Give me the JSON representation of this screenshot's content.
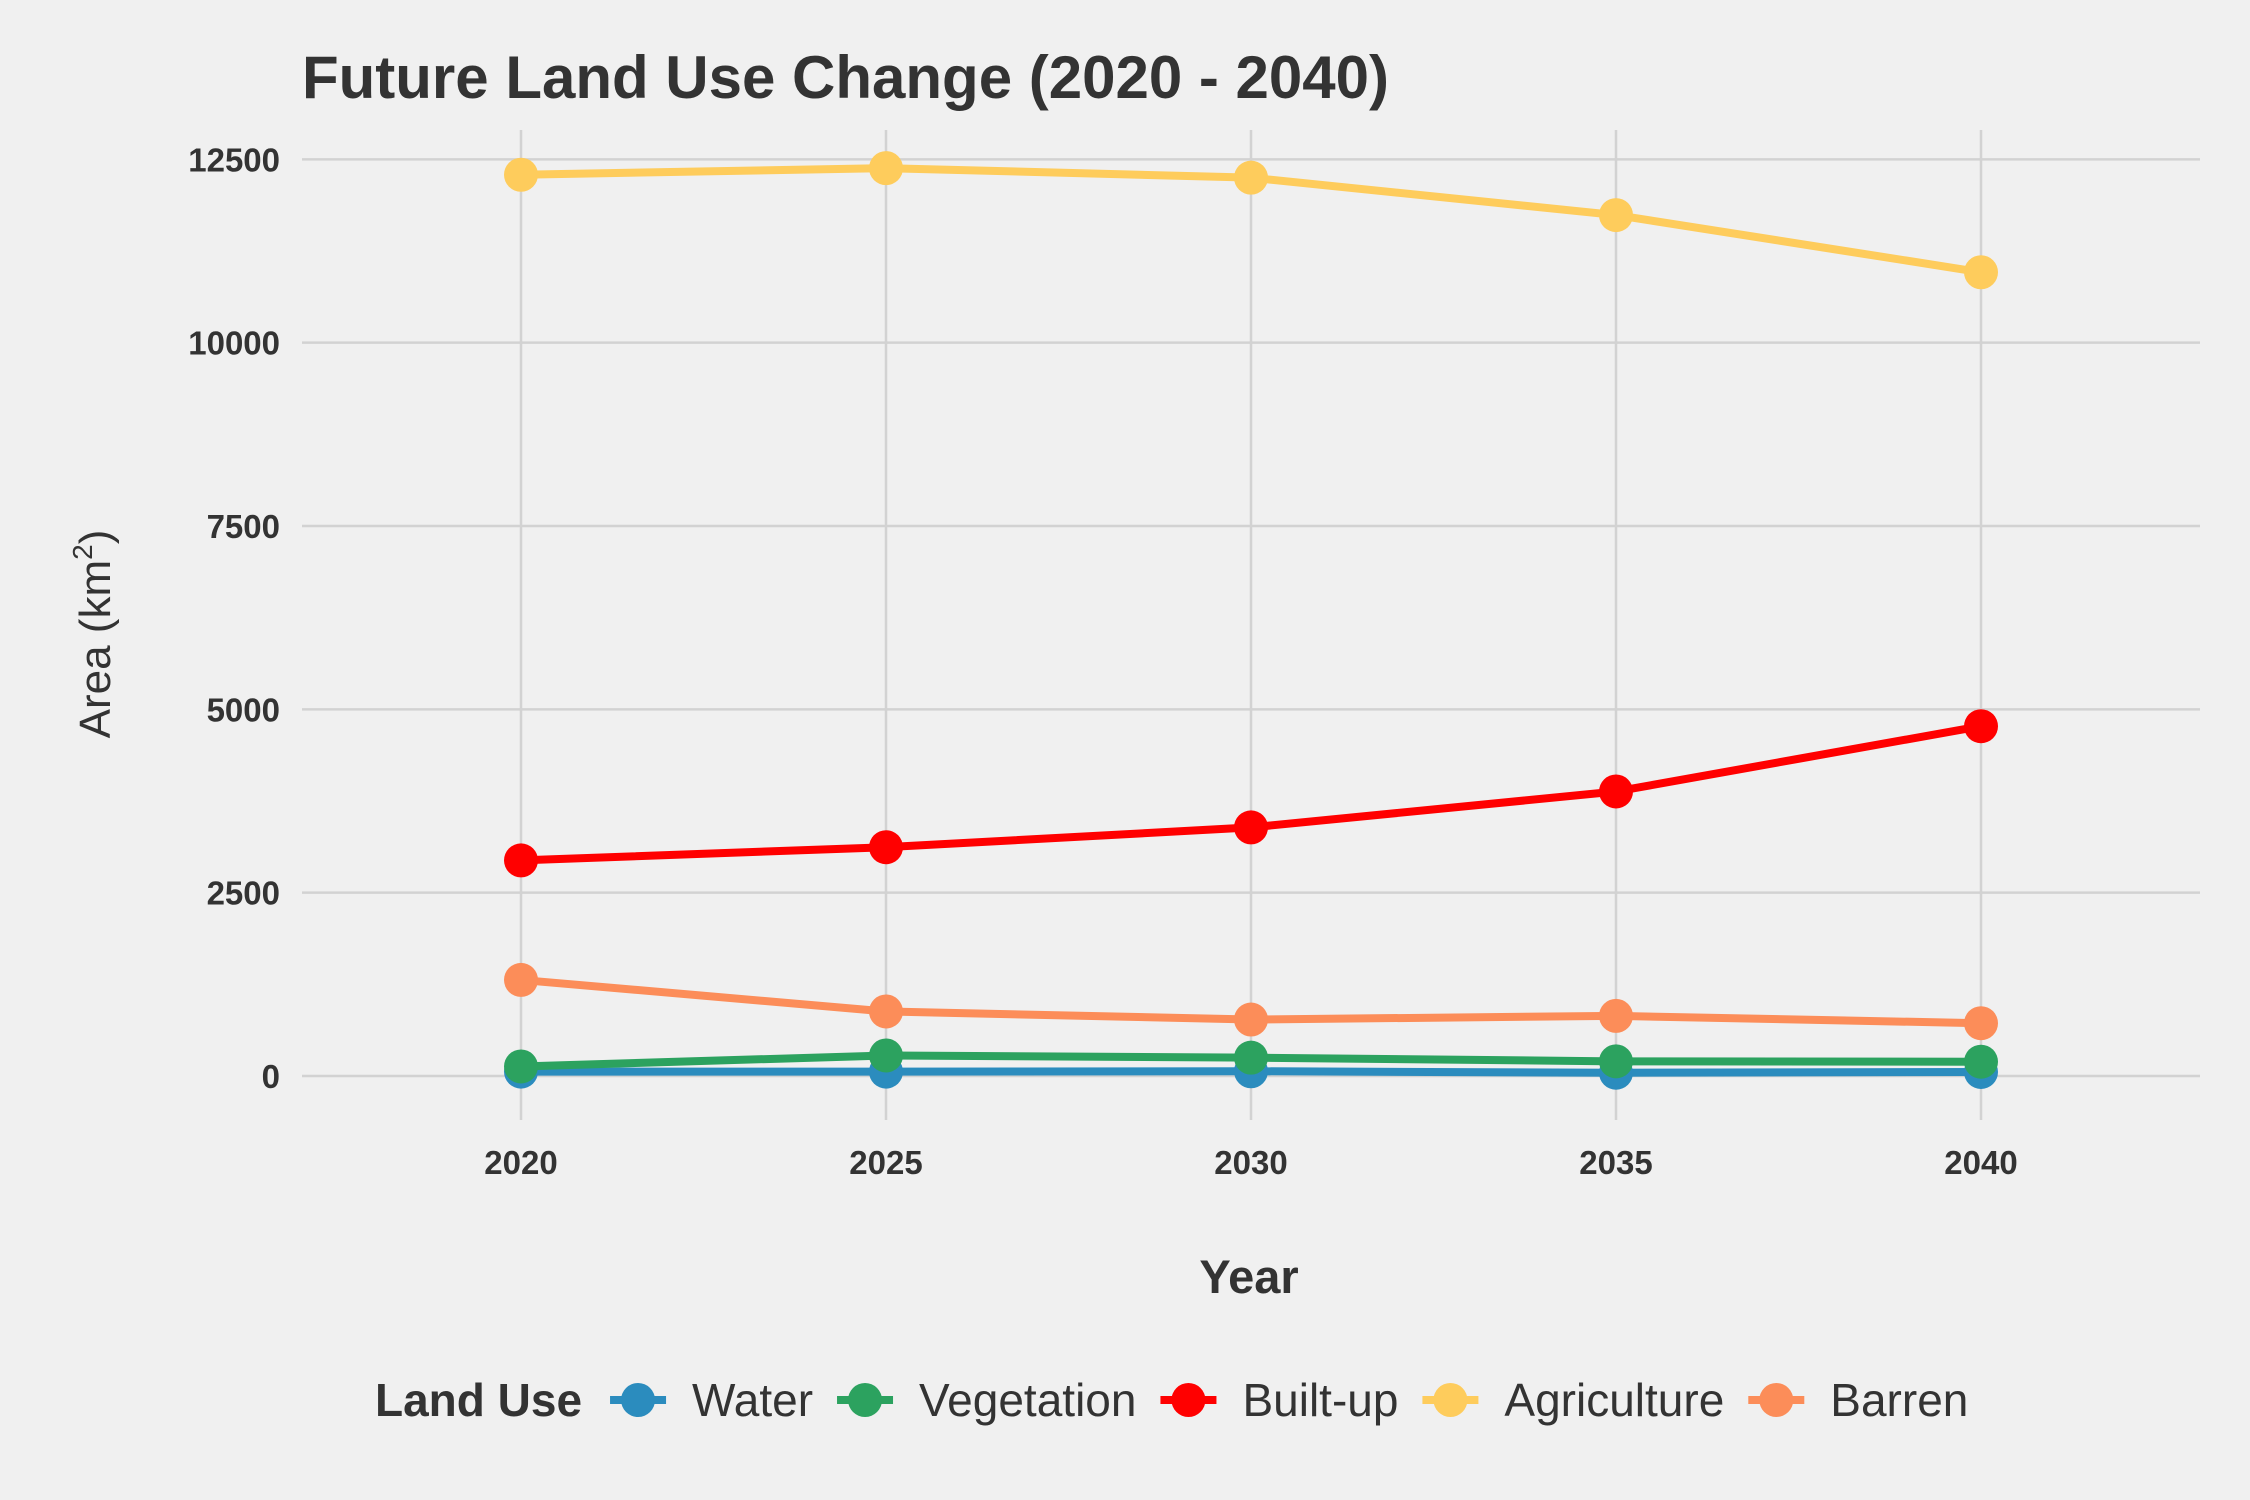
{
  "chart_data": {
    "type": "line",
    "title": "Future Land Use Change (2020 - 2040)",
    "xlabel": "Year",
    "ylabel": {
      "text": "Area (km",
      "sup": "2",
      "close": ")"
    },
    "x": [
      2020,
      2025,
      2030,
      2035,
      2040
    ],
    "x_ticks": [
      "2020",
      "2025",
      "2030",
      "2035",
      "2040"
    ],
    "xlim": [
      2017,
      2043
    ],
    "ylim": [
      -600,
      12900
    ],
    "y_ticks": [
      "0",
      "2500",
      "5000",
      "7500",
      "10000",
      "12500"
    ],
    "y_tick_values": [
      0,
      2500,
      5000,
      7500,
      10000,
      12500
    ],
    "grid": true,
    "legend": {
      "title": "Land Use",
      "position": "bottom"
    },
    "series": [
      {
        "name": "Water",
        "color": "#2b8cbe",
        "values": [
          60,
          60,
          65,
          45,
          55
        ]
      },
      {
        "name": "Vegetation",
        "color": "#2ca25f",
        "values": [
          130,
          280,
          250,
          200,
          195
        ]
      },
      {
        "name": "Built-up",
        "color": "#ff0000",
        "values": [
          2940,
          3120,
          3390,
          3880,
          4770
        ]
      },
      {
        "name": "Agriculture",
        "color": "#fecc5c",
        "values": [
          12290,
          12380,
          12250,
          11740,
          10960
        ]
      },
      {
        "name": "Barren",
        "color": "#fc8d59",
        "values": [
          1310,
          880,
          770,
          820,
          720
        ]
      }
    ]
  },
  "colors": {
    "background": "#f0f0f0",
    "grid": "#d2d2d2",
    "text": "#333333"
  }
}
